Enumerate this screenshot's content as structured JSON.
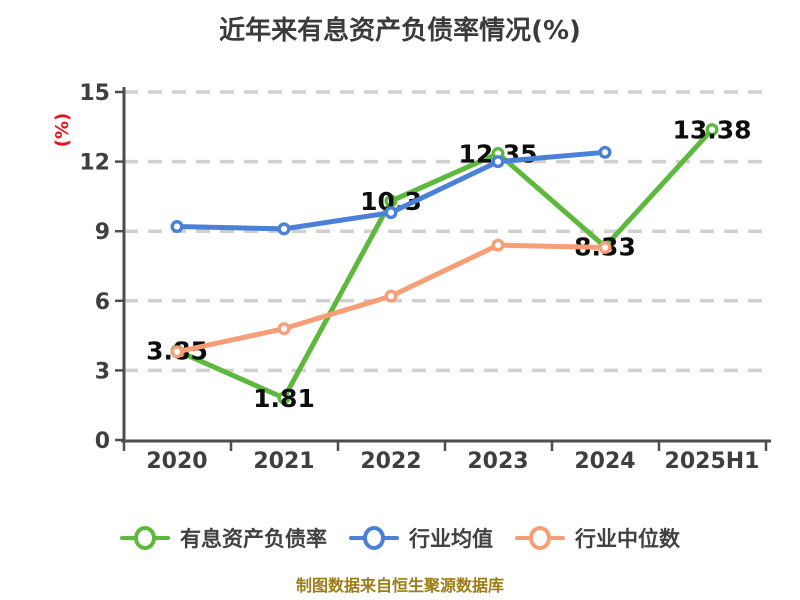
{
  "chart_data": {
    "type": "line",
    "title": "近年来有息资产负债率情况(%)",
    "ylabel": "(%)",
    "footer": "制图数据来自恒生聚源数据库",
    "categories": [
      "2020",
      "2021",
      "2022",
      "2023",
      "2024",
      "2025H1"
    ],
    "y_ticks": [
      0,
      3,
      6,
      9,
      12,
      15
    ],
    "ylim": [
      0,
      15
    ],
    "grid": "horizontal-dashed",
    "legend_position": "bottom",
    "series": [
      {
        "name": "有息资产负债率",
        "color": "#5cb93c",
        "values": [
          3.85,
          1.81,
          10.3,
          12.35,
          8.33,
          13.38
        ],
        "point_labels": [
          "3.85",
          "1.81",
          "10.3",
          "12.35",
          "8.33",
          "13.38"
        ]
      },
      {
        "name": "行业均值",
        "color": "#4b80d9",
        "values": [
          9.2,
          9.1,
          9.8,
          12.0,
          12.4,
          null
        ],
        "point_labels": null
      },
      {
        "name": "行业中位数",
        "color": "#f89e76",
        "values": [
          3.8,
          4.8,
          6.2,
          8.4,
          8.3,
          null
        ],
        "point_labels": null
      }
    ],
    "style": {
      "title_color": "#3b3b3d",
      "ylabel_color": "#e8141c",
      "axis_color": "#4d4d4d",
      "grid_color": "#d0d0d0",
      "tick_label_color": "#3f3f3f",
      "data_label_color": "#0d0d0d",
      "footer_color": "#9c7d15",
      "marker_fill": "#ffffff"
    }
  }
}
